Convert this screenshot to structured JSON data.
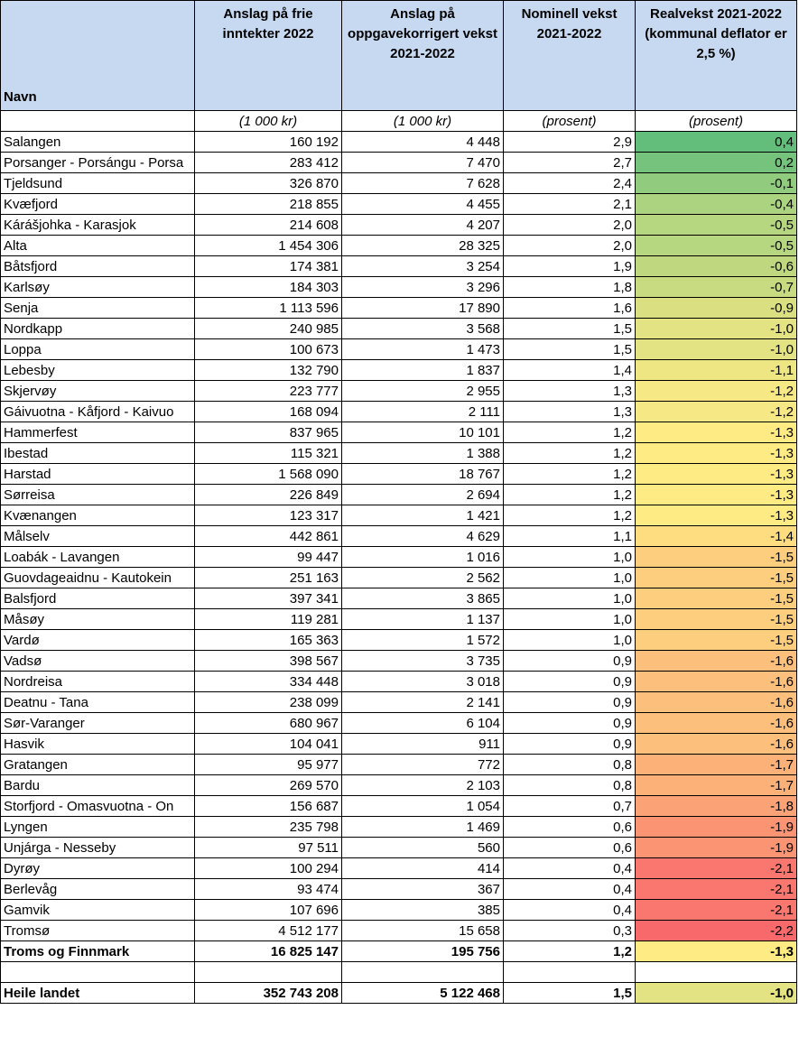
{
  "table": {
    "header": [
      "Navn",
      "Anslag på frie inntekter 2022",
      "Anslag på oppgavekorrigert vekst 2021-2022",
      "Nominell vekst 2021-2022",
      "Realvekst 2021-2022 (kommunal deflator er 2,5 %)"
    ],
    "units": [
      "(1 000 kr)",
      "(1 000 kr)",
      "(prosent)",
      "(prosent)"
    ],
    "rows": [
      [
        "Salangen",
        "160 192",
        "4 448",
        "2,9",
        "0,4"
      ],
      [
        "Porsanger - Porsángu - Porsa",
        "283 412",
        "7 470",
        "2,7",
        "0,2"
      ],
      [
        "Tjeldsund",
        "326 870",
        "7 628",
        "2,4",
        "-0,1"
      ],
      [
        "Kvæfjord",
        "218 855",
        "4 455",
        "2,1",
        "-0,4"
      ],
      [
        "Kárášjohka - Karasjok",
        "214 608",
        "4 207",
        "2,0",
        "-0,5"
      ],
      [
        "Alta",
        "1 454 306",
        "28 325",
        "2,0",
        "-0,5"
      ],
      [
        "Båtsfjord",
        "174 381",
        "3 254",
        "1,9",
        "-0,6"
      ],
      [
        "Karlsøy",
        "184 303",
        "3 296",
        "1,8",
        "-0,7"
      ],
      [
        "Senja",
        "1 113 596",
        "17 890",
        "1,6",
        "-0,9"
      ],
      [
        "Nordkapp",
        "240 985",
        "3 568",
        "1,5",
        "-1,0"
      ],
      [
        "Loppa",
        "100 673",
        "1 473",
        "1,5",
        "-1,0"
      ],
      [
        "Lebesby",
        "132 790",
        "1 837",
        "1,4",
        "-1,1"
      ],
      [
        "Skjervøy",
        "223 777",
        "2 955",
        "1,3",
        "-1,2"
      ],
      [
        "Gáivuotna - Kåfjord - Kaivuo",
        "168 094",
        "2 111",
        "1,3",
        "-1,2"
      ],
      [
        "Hammerfest",
        "837 965",
        "10 101",
        "1,2",
        "-1,3"
      ],
      [
        "Ibestad",
        "115 321",
        "1 388",
        "1,2",
        "-1,3"
      ],
      [
        "Harstad",
        "1 568 090",
        "18 767",
        "1,2",
        "-1,3"
      ],
      [
        "Sørreisa",
        "226 849",
        "2 694",
        "1,2",
        "-1,3"
      ],
      [
        "Kvænangen",
        "123 317",
        "1 421",
        "1,2",
        "-1,3"
      ],
      [
        "Målselv",
        "442 861",
        "4 629",
        "1,1",
        "-1,4"
      ],
      [
        "Loabák - Lavangen",
        "99 447",
        "1 016",
        "1,0",
        "-1,5"
      ],
      [
        "Guovdageaidnu - Kautokein",
        "251 163",
        "2 562",
        "1,0",
        "-1,5"
      ],
      [
        "Balsfjord",
        "397 341",
        "3 865",
        "1,0",
        "-1,5"
      ],
      [
        "Måsøy",
        "119 281",
        "1 137",
        "1,0",
        "-1,5"
      ],
      [
        "Vardø",
        "165 363",
        "1 572",
        "1,0",
        "-1,5"
      ],
      [
        "Vadsø",
        "398 567",
        "3 735",
        "0,9",
        "-1,6"
      ],
      [
        "Nordreisa",
        "334 448",
        "3 018",
        "0,9",
        "-1,6"
      ],
      [
        "Deatnu - Tana",
        "238 099",
        "2 141",
        "0,9",
        "-1,6"
      ],
      [
        "Sør-Varanger",
        "680 967",
        "6 104",
        "0,9",
        "-1,6"
      ],
      [
        "Hasvik",
        "104 041",
        "911",
        "0,9",
        "-1,6"
      ],
      [
        "Gratangen",
        "95 977",
        "772",
        "0,8",
        "-1,7"
      ],
      [
        "Bardu",
        "269 570",
        "2 103",
        "0,8",
        "-1,7"
      ],
      [
        "Storfjord - Omasvuotna - On",
        "156 687",
        "1 054",
        "0,7",
        "-1,8"
      ],
      [
        "Lyngen",
        "235 798",
        "1 469",
        "0,6",
        "-1,9"
      ],
      [
        "Unjárga - Nesseby",
        "97 511",
        "560",
        "0,6",
        "-1,9"
      ],
      [
        "Dyrøy",
        "100 294",
        "414",
        "0,4",
        "-2,1"
      ],
      [
        "Berlevåg",
        "93 474",
        "367",
        "0,4",
        "-2,1"
      ],
      [
        "Gamvik",
        "107 696",
        "385",
        "0,4",
        "-2,1"
      ],
      [
        "Tromsø",
        "4 512 177",
        "15 658",
        "0,3",
        "-2,2"
      ]
    ],
    "totals": [
      [
        "Troms og Finnmark",
        "16 825 147",
        "195 756",
        "1,2",
        "-1,3"
      ],
      [
        "Heile landet",
        "352 743 208",
        "5 122 468",
        "1,5",
        "-1,0"
      ]
    ]
  }
}
